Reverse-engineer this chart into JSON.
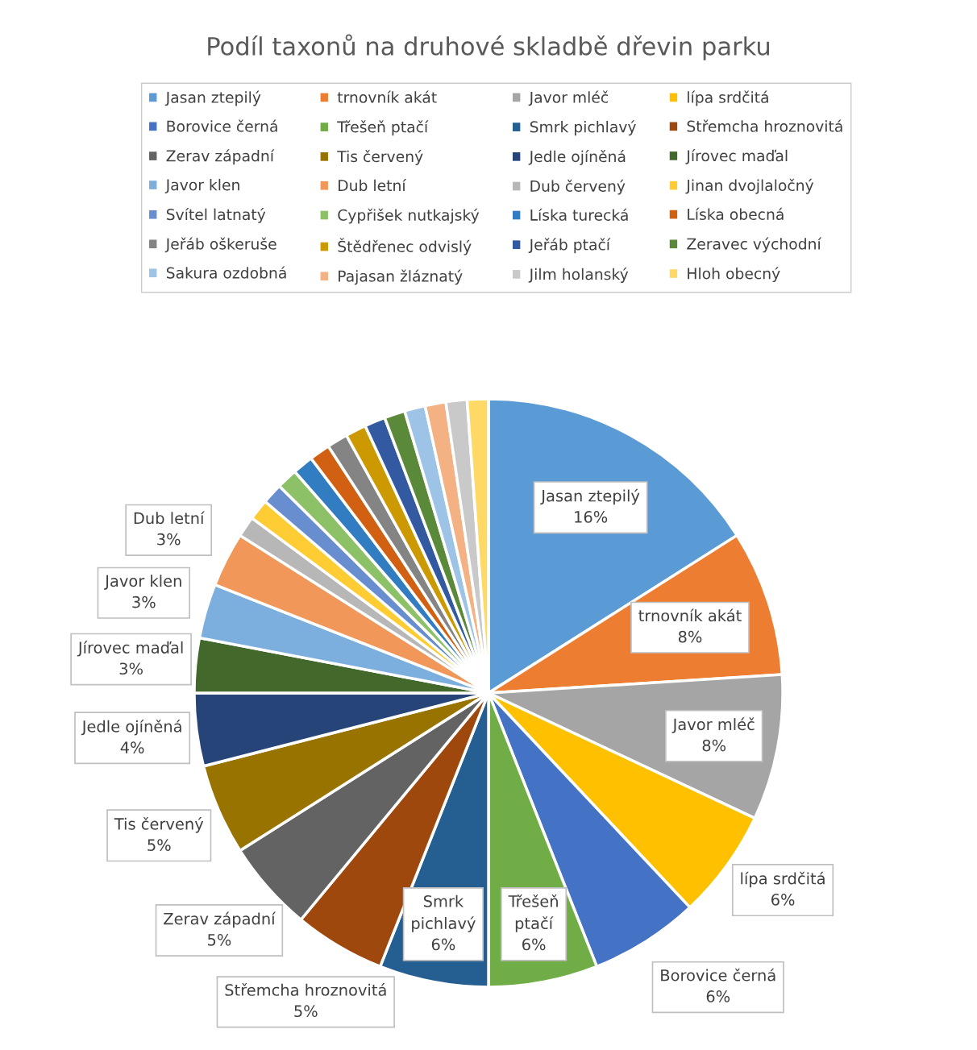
{
  "chart_data": {
    "type": "pie",
    "title": "Podíl taxonů na druhové skladbě dřevin parku",
    "categories": [
      "Jasan ztepilý",
      "trnovník akát",
      "Javor mléč",
      "lípa srdčitá",
      "Borovice černá",
      "Třešeň ptačí",
      "Smrk pichlavý",
      "Střemcha hroznovitá",
      "Zerav západní",
      "Tis červený",
      "Jedle ojíněná",
      "Jírovec maďal",
      "Javor klen",
      "Dub letní",
      "Dub červený",
      "Jinan dvojlaločný",
      "Svítel latnatý",
      "Cypřišek nutkajský",
      "Líska turecká",
      "Líska obecná",
      "Jeřáb oškeruše",
      "Štědřenec odvislý",
      "Jeřáb ptačí",
      "Zeravec východní",
      "Sakura ozdobná",
      "Pajasan žláznatý",
      "Jilm holanský",
      "Hloh obecný"
    ],
    "values": [
      16,
      8,
      8,
      6,
      6,
      6,
      6,
      5,
      5,
      5,
      4,
      3,
      3,
      3,
      1.14,
      1.14,
      1.14,
      1.14,
      1.14,
      1.14,
      1.14,
      1.14,
      1.14,
      1.14,
      1.14,
      1.14,
      1.16,
      1.16
    ],
    "value_labels": [
      "16%",
      "8%",
      "8%",
      "6%",
      "6%",
      "6%",
      "6%",
      "5%",
      "5%",
      "5%",
      "4%",
      "3%",
      "3%",
      "3%",
      null,
      null,
      null,
      null,
      null,
      null,
      null,
      null,
      null,
      null,
      null,
      null,
      null,
      null
    ],
    "colors": [
      "#5b9bd5",
      "#ed7d31",
      "#a5a5a5",
      "#ffc000",
      "#4472c4",
      "#70ad47",
      "#255e91",
      "#9e480e",
      "#636363",
      "#997300",
      "#264478",
      "#43682b",
      "#7cafdd",
      "#f1975a",
      "#b7b7b7",
      "#ffcd33",
      "#698ed0",
      "#8cc168",
      "#327dc2",
      "#d26012",
      "#848484",
      "#cc9a00",
      "#335aa1",
      "#5a8a39",
      "#9dc3e6",
      "#f4b183",
      "#c9c9c9",
      "#ffd966"
    ],
    "legend": "top"
  }
}
